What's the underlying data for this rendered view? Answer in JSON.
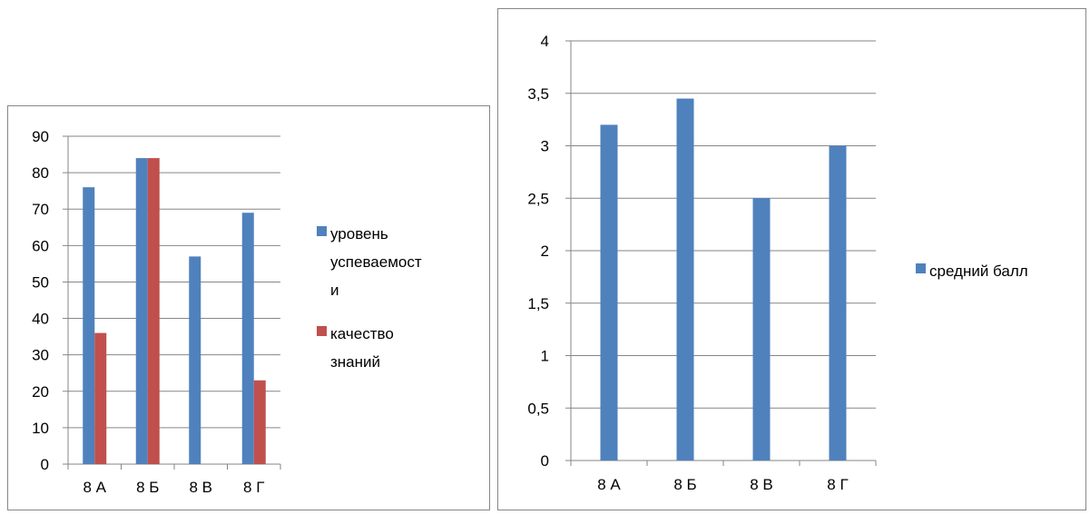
{
  "chart_data": [
    {
      "type": "bar",
      "categories": [
        "8 А",
        "8 Б",
        "8 В",
        "8 Г"
      ],
      "series": [
        {
          "name": "уровень успеваемости",
          "values": [
            76,
            84,
            57,
            69
          ],
          "color": "#4f81bd"
        },
        {
          "name": "качество знаний",
          "values": [
            36,
            84,
            0,
            23
          ],
          "color": "#c0504d"
        }
      ],
      "legend_lines": [
        [
          "уровень",
          "успеваемост",
          "и"
        ],
        [
          "качество",
          "знаний"
        ]
      ],
      "ylim": [
        0,
        90
      ],
      "yticks": [
        "0",
        "10",
        "20",
        "30",
        "40",
        "50",
        "60",
        "70",
        "80",
        "90"
      ],
      "grid": true,
      "legend_position": "right",
      "xlabel": "",
      "ylabel": ""
    },
    {
      "type": "bar",
      "categories": [
        "8 А",
        "8 Б",
        "8 В",
        "8 Г"
      ],
      "series": [
        {
          "name": "средний балл",
          "values": [
            3.2,
            3.45,
            2.5,
            3.0
          ],
          "color": "#4f81bd"
        }
      ],
      "legend_lines": [
        [
          "средний балл"
        ]
      ],
      "ylim": [
        0,
        4
      ],
      "yticks": [
        "0",
        "0,5",
        "1",
        "1,5",
        "2",
        "2,5",
        "3",
        "3,5",
        "4"
      ],
      "grid": true,
      "legend_position": "right",
      "xlabel": "",
      "ylabel": ""
    }
  ]
}
